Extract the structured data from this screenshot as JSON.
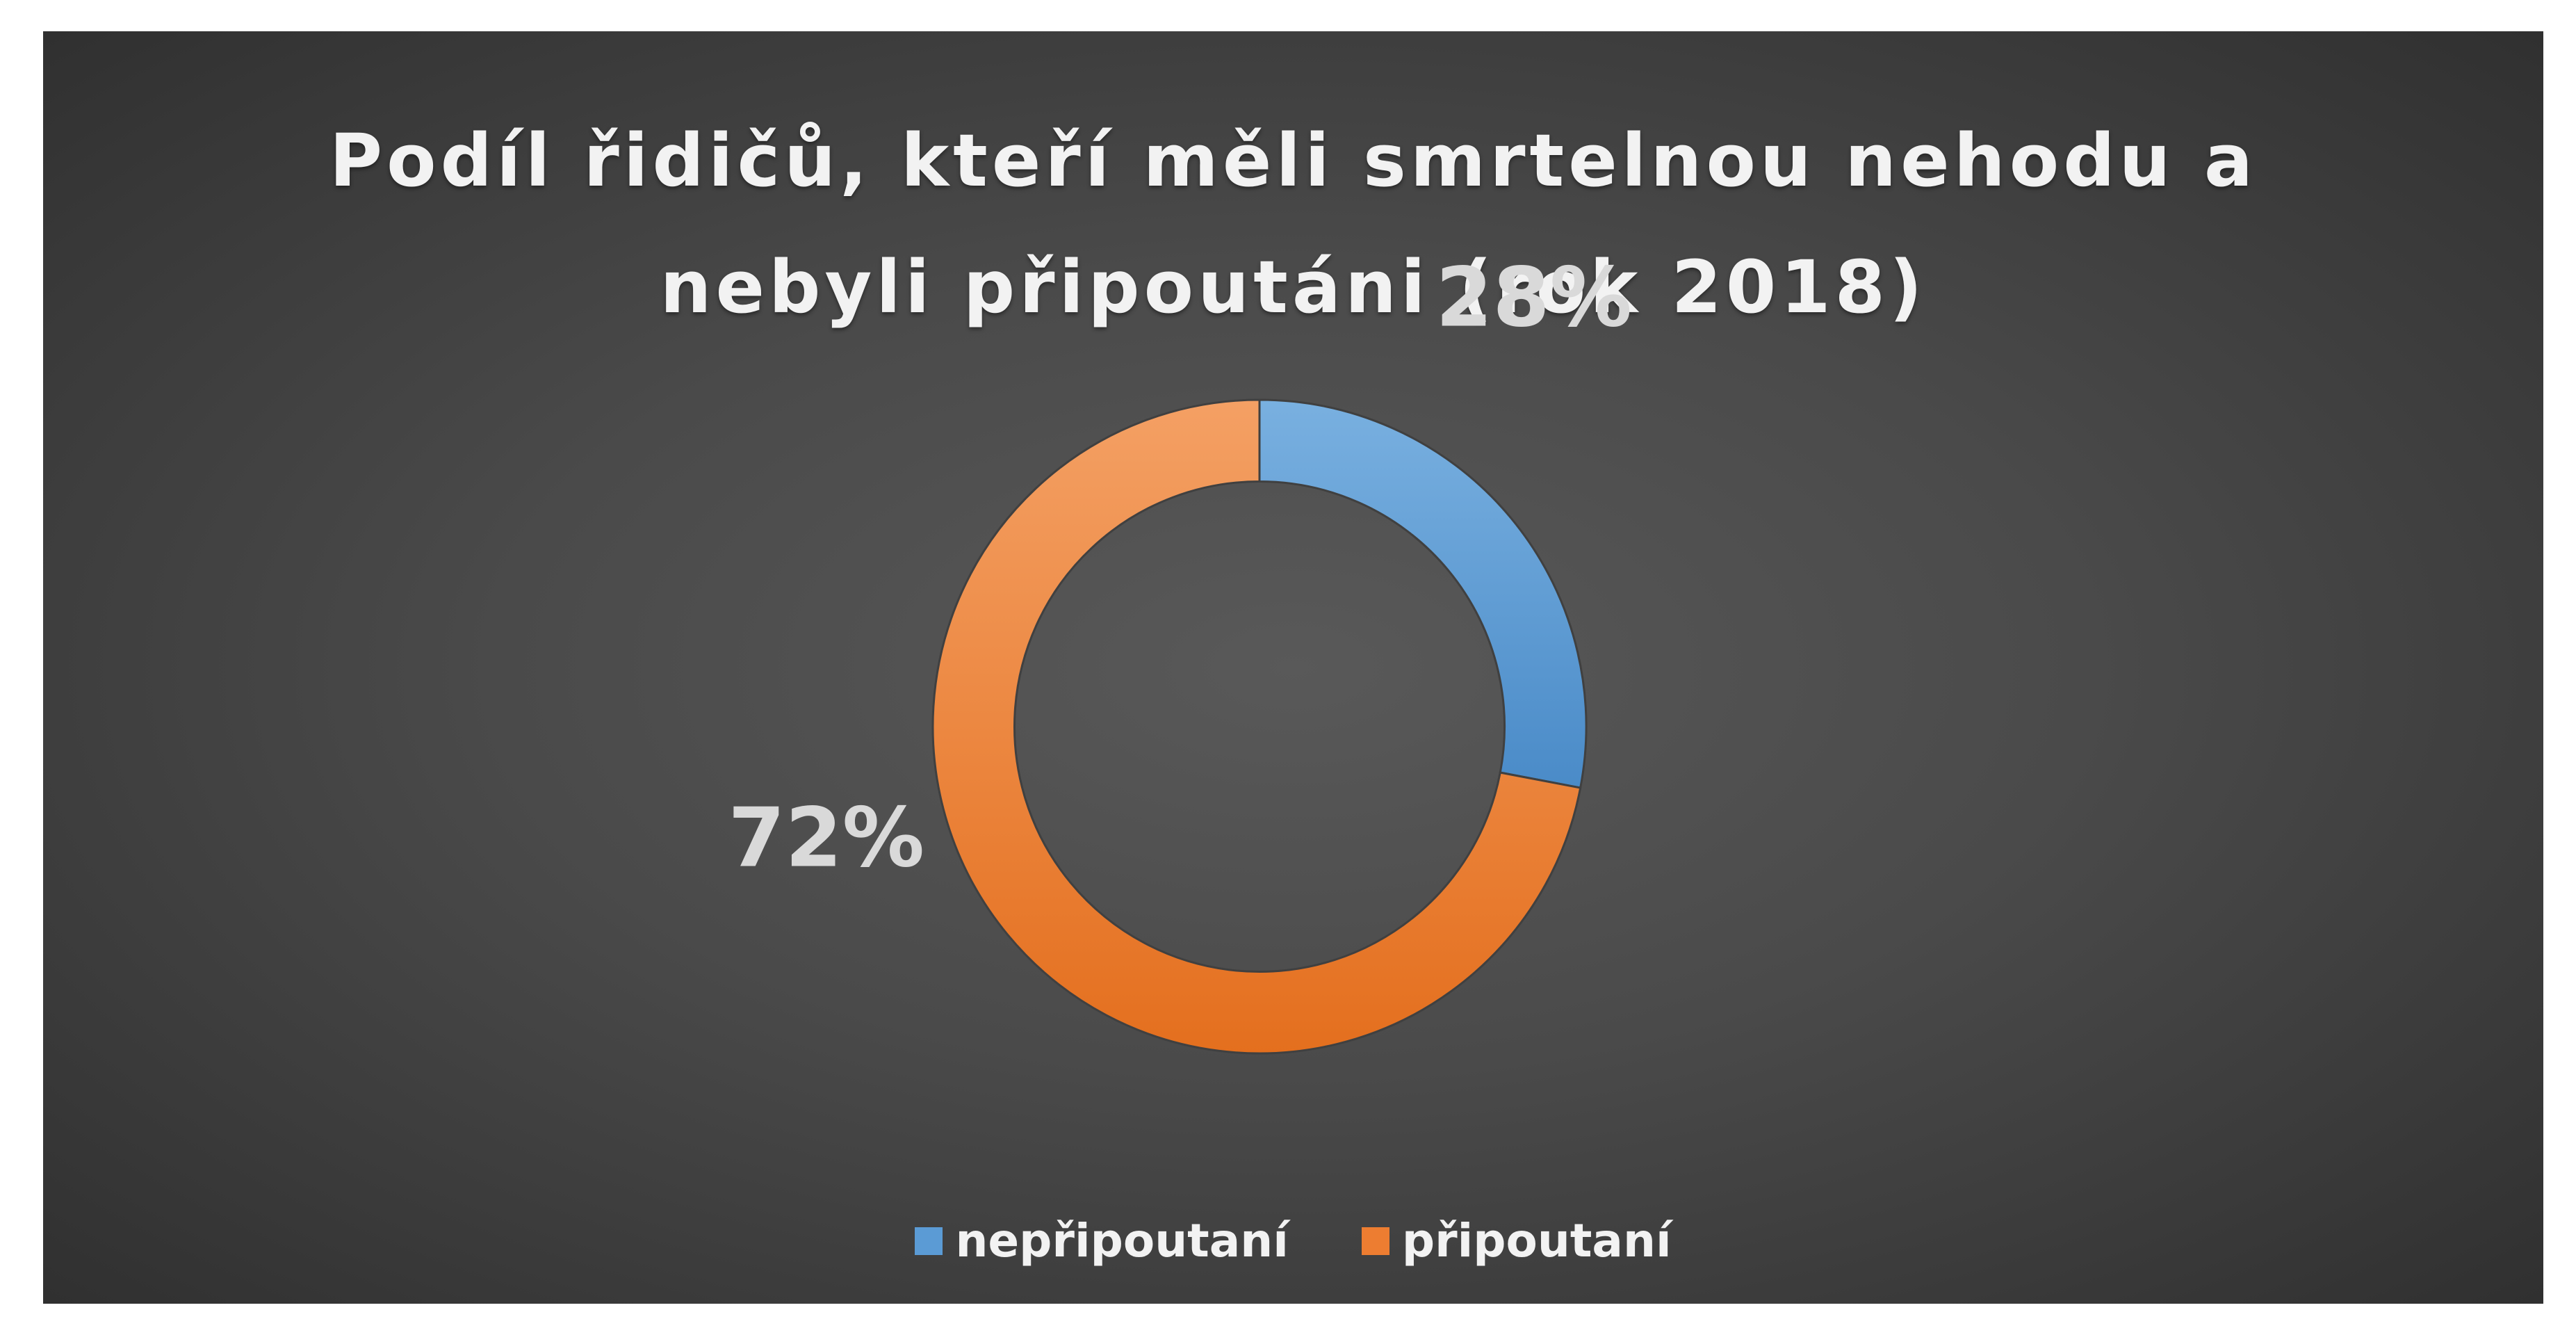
{
  "chart_data": {
    "type": "pie",
    "title": [
      "Podíl řidičů, kteří měli smrtelnou nehodu a",
      "nebyli připoutáni (rok 2018)"
    ],
    "categories": [
      "nepřipoutaní",
      "připoutaní"
    ],
    "values": [
      28,
      72
    ],
    "data_labels": [
      "28%",
      "72%"
    ],
    "colors": [
      "#5b9bd5",
      "#ed7d31"
    ],
    "hole": 0.75,
    "legend": "bottom",
    "background": "#404040"
  }
}
